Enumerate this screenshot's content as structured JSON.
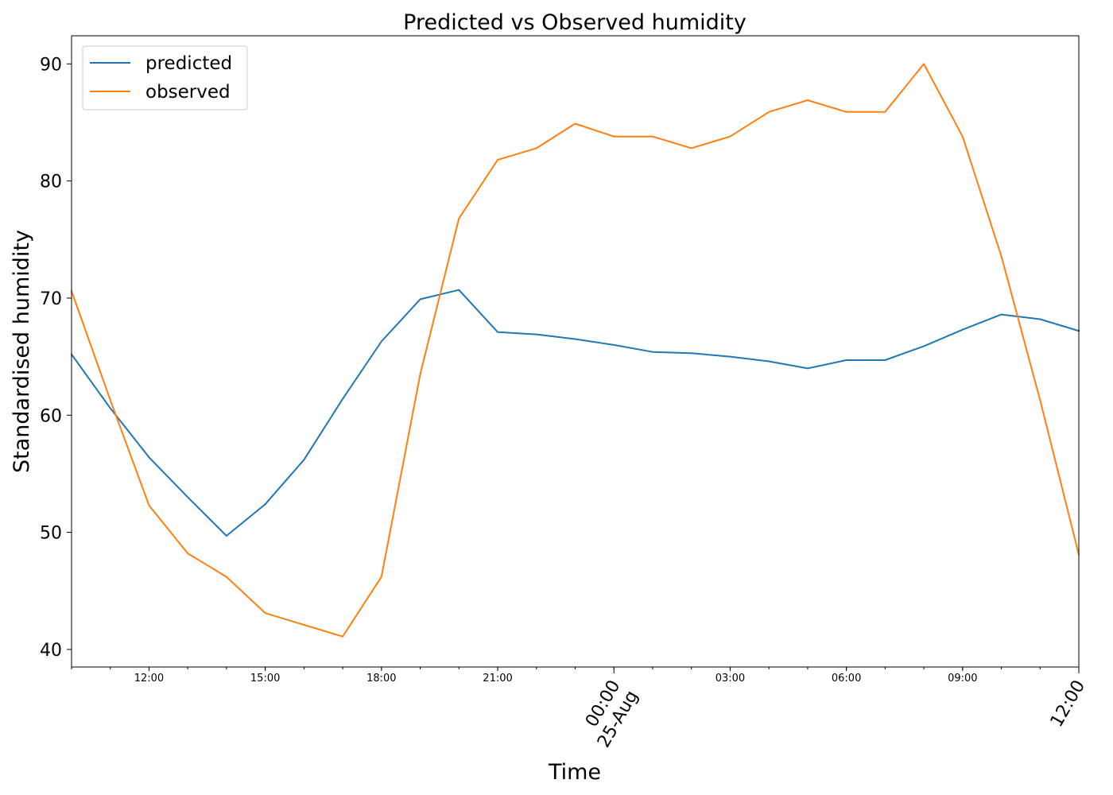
{
  "chart_data": {
    "type": "line",
    "title": "Predicted vs Observed humidity",
    "xlabel": "Time",
    "ylabel": "Standardised humidity",
    "x": [
      "10:00",
      "11:00",
      "12:00",
      "13:00",
      "14:00",
      "15:00",
      "16:00",
      "17:00",
      "18:00",
      "19:00",
      "20:00",
      "21:00",
      "22:00",
      "23:00",
      "00:00",
      "01:00",
      "02:00",
      "03:00",
      "04:00",
      "05:00",
      "06:00",
      "07:00",
      "08:00",
      "09:00",
      "10:00",
      "11:00",
      "12:00"
    ],
    "series": [
      {
        "name": "predicted",
        "color": "#1f77b4",
        "values": [
          65.2,
          60.6,
          56.4,
          53.0,
          49.7,
          52.4,
          56.2,
          61.4,
          66.3,
          69.9,
          70.7,
          67.1,
          66.9,
          66.5,
          66.0,
          65.4,
          65.3,
          65.0,
          64.6,
          64.0,
          64.7,
          64.7,
          65.9,
          67.3,
          68.6,
          68.2,
          67.2
        ]
      },
      {
        "name": "observed",
        "color": "#ff7f0e",
        "values": [
          70.6,
          61.3,
          52.3,
          48.2,
          46.2,
          43.1,
          42.1,
          41.1,
          46.2,
          63.5,
          76.8,
          81.8,
          82.8,
          84.9,
          83.8,
          83.8,
          82.8,
          83.8,
          85.9,
          86.9,
          85.9,
          85.9,
          90.0,
          83.8,
          73.6,
          61.3,
          48.1
        ]
      }
    ],
    "ylim": [
      38.5,
      92.4
    ],
    "yticks": [
      40,
      50,
      60,
      70,
      80,
      90
    ],
    "xticks_minor": [
      {
        "index": 2,
        "label": "12:00"
      },
      {
        "index": 5,
        "label": "15:00"
      },
      {
        "index": 8,
        "label": "18:00"
      },
      {
        "index": 11,
        "label": "21:00"
      },
      {
        "index": 17,
        "label": "03:00"
      },
      {
        "index": 20,
        "label": "06:00"
      },
      {
        "index": 23,
        "label": "09:00"
      }
    ],
    "xticks_major": [
      {
        "index": 14,
        "label": "00:00",
        "label2": "25-Aug"
      },
      {
        "index": 26,
        "label": "12:00",
        "label2": ""
      }
    ],
    "legend": "top-left",
    "grid": false
  }
}
